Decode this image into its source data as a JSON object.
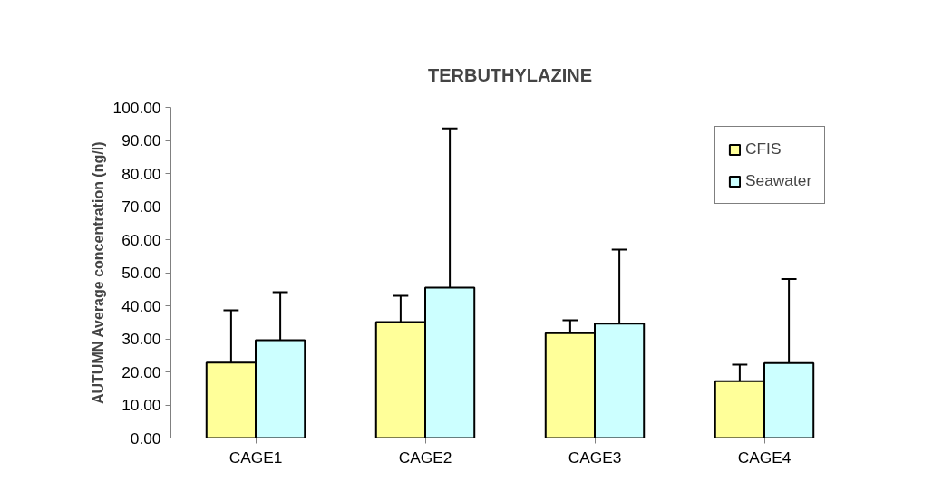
{
  "chart_data": {
    "type": "bar",
    "title": "TERBUTHYLAZINE",
    "ylabel": "AUTUMN Average concentration (ng/l)",
    "categories": [
      "CAGE1",
      "CAGE2",
      "CAGE3",
      "CAGE4"
    ],
    "series": [
      {
        "name": "CFIS",
        "color": "#ffff99",
        "values": [
          22.8,
          35.1,
          31.7,
          17.2
        ],
        "errors": [
          [
            22.8,
            38.6
          ],
          [
            35.1,
            43.0
          ],
          [
            31.7,
            35.6
          ],
          [
            17.2,
            22.2
          ]
        ]
      },
      {
        "name": "Seawater",
        "color": "#ccffff",
        "values": [
          29.6,
          45.5,
          34.6,
          22.7
        ],
        "errors": [
          [
            29.6,
            44.1
          ],
          [
            45.5,
            93.6
          ],
          [
            34.6,
            57.0
          ],
          [
            22.7,
            48.1
          ]
        ]
      }
    ],
    "ylim": [
      0,
      100
    ],
    "yticks": [
      {
        "value": 0,
        "label": "0.00"
      },
      {
        "value": 10,
        "label": "10.00"
      },
      {
        "value": 20,
        "label": "20.00"
      },
      {
        "value": 30,
        "label": "30.00"
      },
      {
        "value": 40,
        "label": "40.00"
      },
      {
        "value": 50,
        "label": "50.00"
      },
      {
        "value": 60,
        "label": "60.00"
      },
      {
        "value": 70,
        "label": "70.00"
      },
      {
        "value": 80,
        "label": "80.00"
      },
      {
        "value": 90,
        "label": "90.00"
      },
      {
        "value": 100,
        "label": "100.00"
      }
    ],
    "grid": false,
    "legend": "top right"
  }
}
